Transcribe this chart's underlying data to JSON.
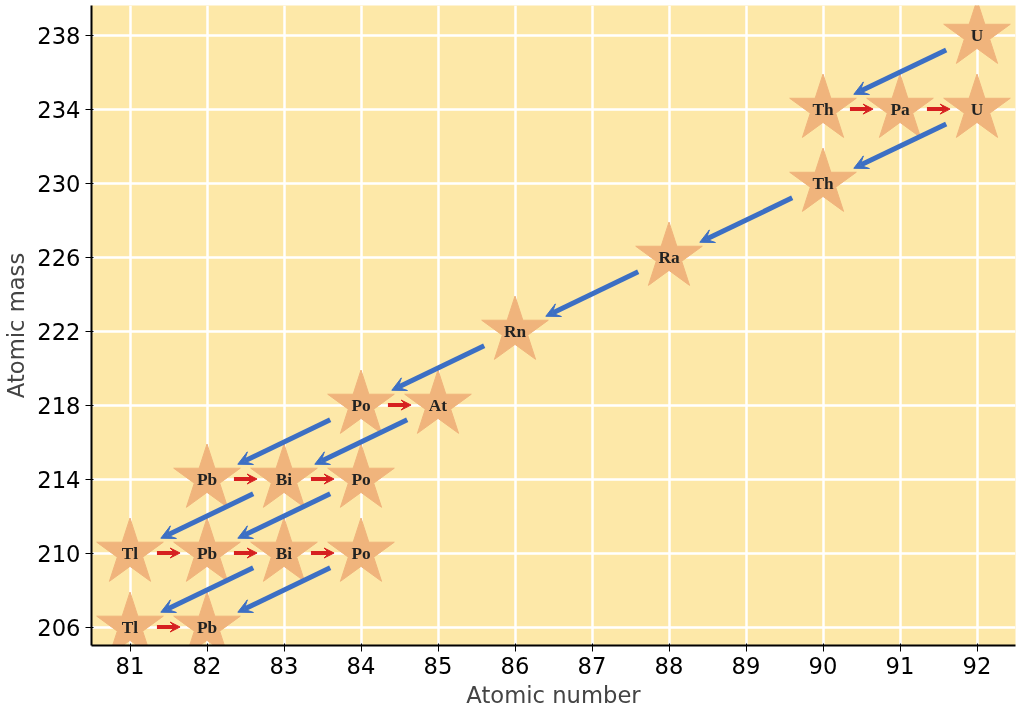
{
  "chart_data": {
    "type": "scatter",
    "xlabel": "Atomic number",
    "ylabel": "Atomic mass",
    "x": [
      92,
      90,
      91,
      92,
      90,
      88,
      86,
      84,
      85,
      82,
      83,
      84,
      81,
      82,
      83,
      84,
      81,
      82
    ],
    "series": [
      {
        "color": "#f0b47c",
        "values": [
          238,
          234,
          234,
          234,
          230,
          226,
          222,
          218,
          218,
          214,
          214,
          214,
          210,
          210,
          210,
          210,
          206,
          206
        ],
        "value_labels": [
          "U",
          "Th",
          "Pa",
          "U",
          "Th",
          "Ra",
          "Rn",
          "Po",
          "At",
          "Pb",
          "Bi",
          "Po",
          "Tl",
          "Pb",
          "Bi",
          "Po",
          "Tl",
          "Pb"
        ]
      }
    ],
    "marker": "star",
    "xlim": [
      80.5,
      92.5
    ],
    "ylim": [
      205,
      239.6
    ],
    "xticks": [
      81,
      82,
      83,
      84,
      85,
      86,
      87,
      88,
      89,
      90,
      91,
      92
    ],
    "yticks": [
      206,
      210,
      214,
      218,
      222,
      226,
      230,
      234,
      238
    ],
    "grid": true
  }
}
